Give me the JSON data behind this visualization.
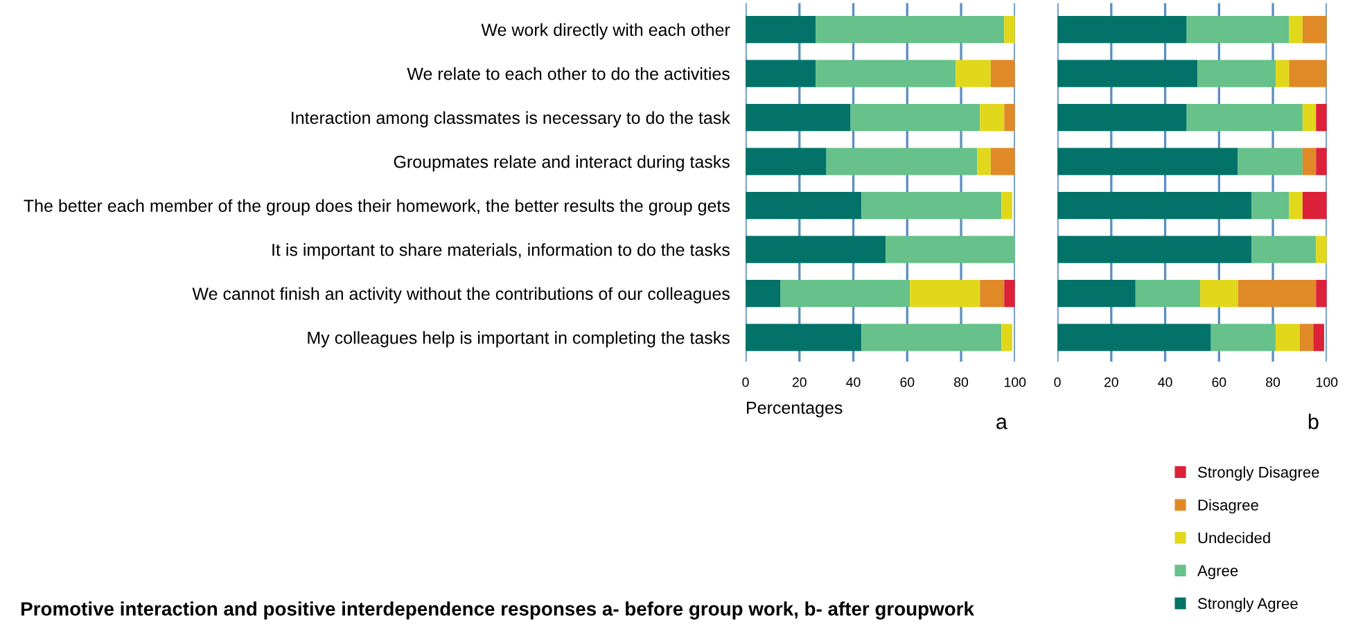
{
  "chart_data": [
    {
      "type": "bar",
      "orientation": "horizontal",
      "stacked": true,
      "title": "Promotive interaction and positive interdependence responses a- before group work, b- after groupwork",
      "xlabel": "Percentages",
      "annotations": [
        "a"
      ],
      "grid": "x",
      "legend": false,
      "categories": [
        "We work directly with each other",
        "We relate to each other to do the activities",
        "Interaction among classmates is necessary to do the task",
        "Groupmates relate and interact during tasks",
        "The better each member of the group does their homework, the better results the group gets",
        "It is important to share materials, information to do the tasks",
        "We cannot finish an activity without the contributions of our colleagues",
        "My colleagues help is important in completing the tasks"
      ],
      "xlim": [
        0,
        100
      ],
      "xticks": [
        0,
        20,
        40,
        60,
        80,
        100
      ],
      "series": [
        {
          "color": "#03736a",
          "values": [
            26,
            26,
            39,
            30,
            43,
            52,
            13,
            43
          ]
        },
        {
          "color": "#66c18a",
          "values": [
            70,
            52,
            48,
            56,
            52,
            48,
            48,
            52
          ]
        },
        {
          "color": "#e1d81b",
          "values": [
            4,
            13,
            9,
            5,
            4,
            0,
            26,
            4
          ]
        },
        {
          "color": "#e08a27",
          "values": [
            0,
            9,
            4,
            9,
            0,
            0,
            9,
            0
          ]
        },
        {
          "color": "#dc2138",
          "values": [
            0,
            0,
            0,
            0,
            0,
            0,
            4,
            0
          ]
        }
      ]
    },
    {
      "type": "bar",
      "orientation": "horizontal",
      "stacked": true,
      "annotations": [
        "b"
      ],
      "grid": "x",
      "legend": "bottom right",
      "tick_labels": "x",
      "categories": [
        null,
        null,
        null,
        null,
        null,
        null,
        null,
        null
      ],
      "xlim": [
        0,
        100
      ],
      "xticks": [
        0,
        20,
        40,
        60,
        80,
        100
      ],
      "series": [
        {
          "name": "Strongly Agree",
          "color": "#03736a",
          "values": [
            48,
            52,
            48,
            67,
            72,
            72,
            29,
            57
          ]
        },
        {
          "name": "Agree",
          "color": "#66c18a",
          "values": [
            38,
            29,
            43,
            24,
            14,
            24,
            24,
            24
          ]
        },
        {
          "name": "Undecided",
          "color": "#e1d81b",
          "values": [
            5,
            5,
            5,
            0,
            5,
            4,
            14,
            9
          ]
        },
        {
          "name": "Disagree",
          "color": "#e08a27",
          "values": [
            9,
            14,
            0,
            5,
            0,
            0,
            29,
            5
          ]
        },
        {
          "name": "Strongly Disagree",
          "color": "#dc2138",
          "values": [
            0,
            0,
            4,
            4,
            9,
            0,
            4,
            4
          ]
        }
      ]
    }
  ]
}
